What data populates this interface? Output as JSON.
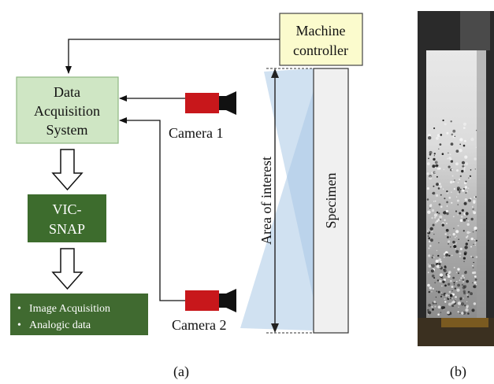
{
  "colors": {
    "controller_fill": "#fbfbcd",
    "das_fill": "#cfe6c4",
    "das_stroke": "#8fb882",
    "vic_fill": "#3d6c2d",
    "output_fill": "#406a30",
    "camera_body": "#c8171b",
    "camera_lens": "#111111",
    "fov": "#a9c8e6",
    "specimen_fill": "#f0f0f0"
  },
  "diagram": {
    "machine_controller": {
      "line1": "Machine",
      "line2": "controller"
    },
    "data_acquisition": {
      "line1": "Data",
      "line2": "Acquisition",
      "line3": "System"
    },
    "vic_snap": {
      "line1": "VIC-",
      "line2": "SNAP"
    },
    "outputs": [
      "Image Acquisition",
      "Analogic data"
    ],
    "camera1": {
      "label": "Camera 1",
      "icon": "camera-icon"
    },
    "camera2": {
      "label": "Camera 2",
      "icon": "camera-icon"
    },
    "area_label": "Area of interest",
    "specimen_label": "Specimen",
    "bullet": "•"
  },
  "captions": {
    "a": "(a)",
    "b": "(b)"
  }
}
